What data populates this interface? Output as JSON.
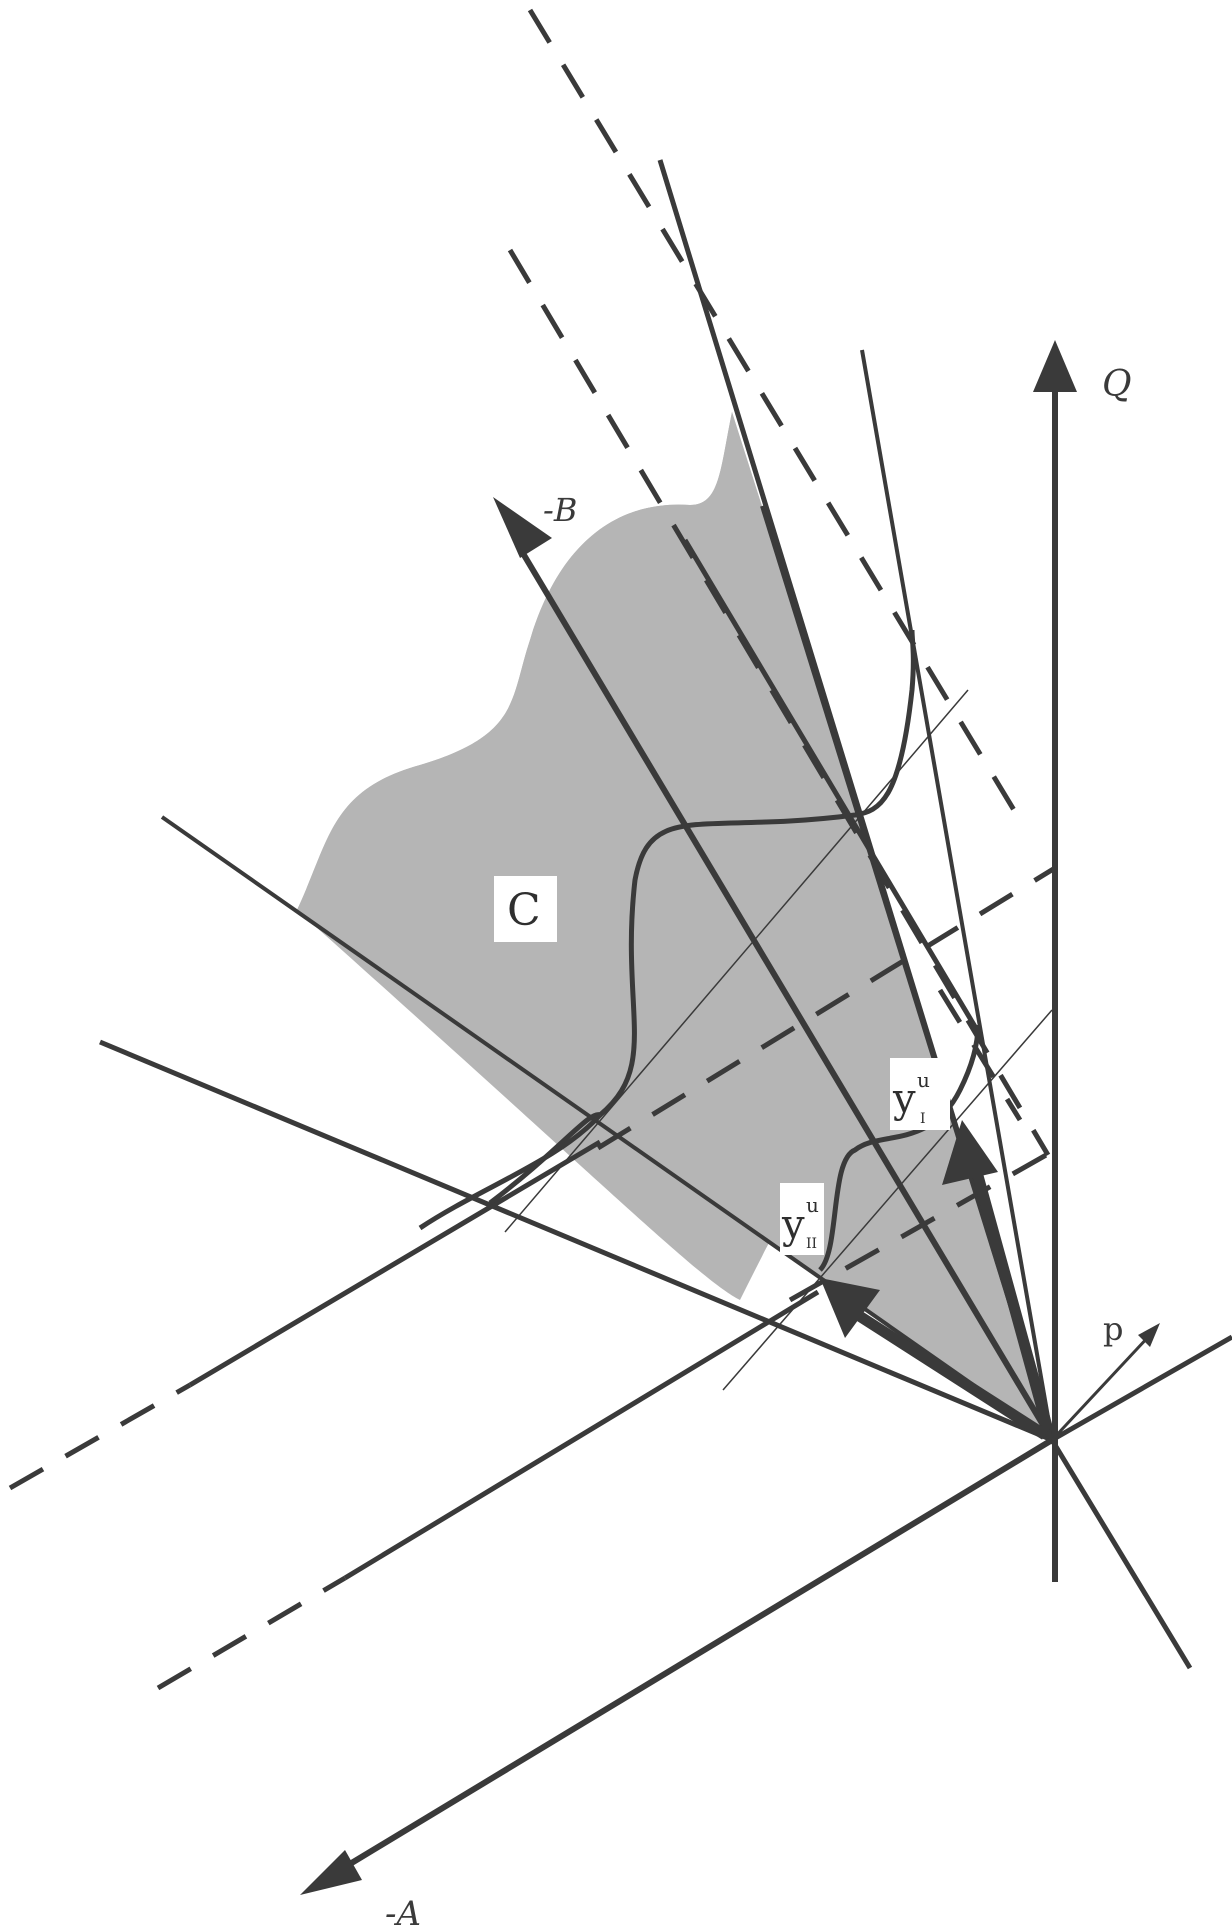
{
  "diagram": {
    "labels": {
      "q_axis": "Q",
      "neg_b_axis": "-B",
      "neg_a_axis": "-A",
      "p_vector": "p",
      "region_c": "C",
      "y_i_base": "y",
      "y_i_sup": "u",
      "y_i_sub": "I",
      "y_ii_base": "y",
      "y_ii_sup": "u",
      "y_ii_sub": "II"
    },
    "colors": {
      "ink": "#3a3a3a",
      "region_fill": "#b5b5b5",
      "background": "#ffffff",
      "label_box": "#ffffff"
    }
  }
}
